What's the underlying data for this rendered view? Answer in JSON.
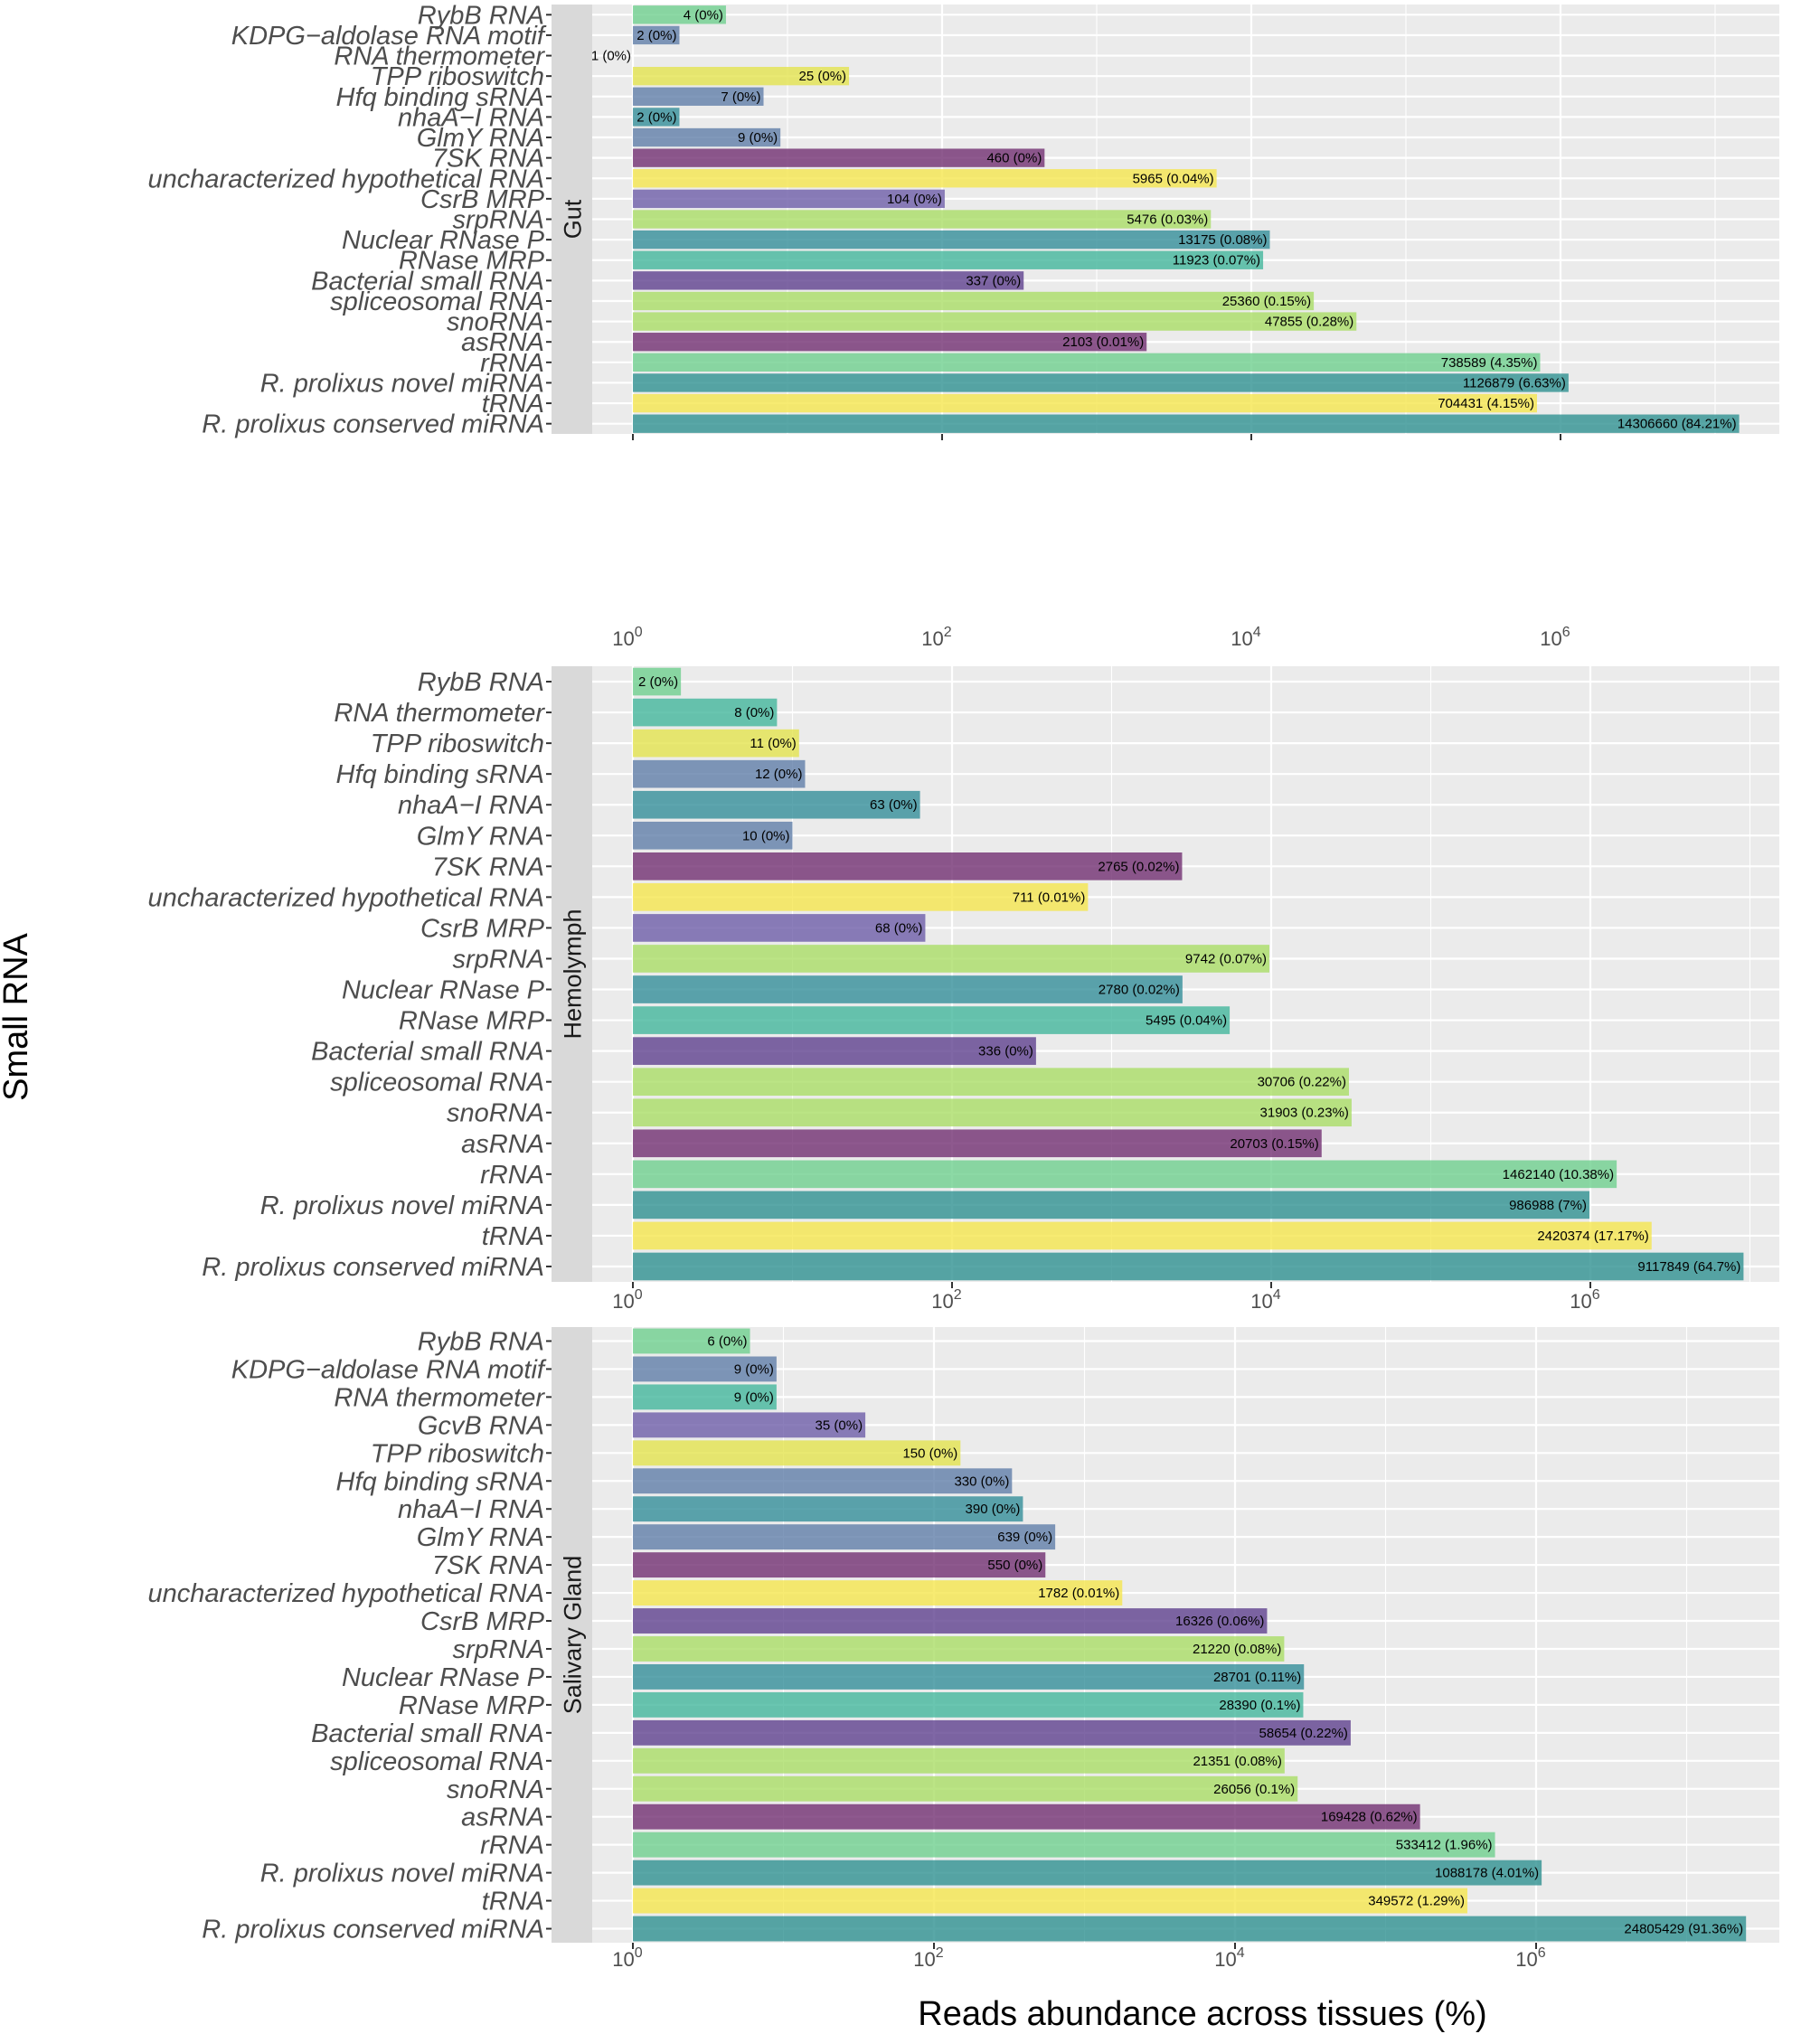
{
  "colors": {
    "panel_bg": "#EBEBEB",
    "strip_bg": "#D9D9D9",
    "grid": "#FFFFFF",
    "palette": {
      "green": "#6CCE8C",
      "steel": "#5C7BA6",
      "yellow": "#E3E34A",
      "purple": "#6E2A6E",
      "bright_yellow": "#F5E64A",
      "violet": "#6A5AA6",
      "lime": "#A8DC63",
      "teal": "#2F8C97",
      "sea": "#3FB59A",
      "indigo": "#5B3C8C",
      "teal2": "#2A8E8E"
    }
  },
  "chart_data": {
    "type": "bar",
    "orientation": "horizontal",
    "x_scale": "log10",
    "xlim": [
      0.75,
      30000000
    ],
    "x_tick_labels": [
      {
        "value": 1,
        "base": "10",
        "exp": "0"
      },
      {
        "value": 100,
        "base": "10",
        "exp": "2"
      },
      {
        "value": 10000,
        "base": "10",
        "exp": "4"
      },
      {
        "value": 1000000,
        "base": "10",
        "exp": "6"
      }
    ],
    "xlabel": "Reads abundance across tissues (%)",
    "ylabel": "Small RNA",
    "grid": true,
    "panels": [
      {
        "facet": "Gut",
        "x_max": 23000000,
        "bars": [
          {
            "category": "RybB RNA",
            "value": 4,
            "label": "4 (0%)",
            "color": "green"
          },
          {
            "category": "KDPG−aldolase RNA motif",
            "value": 2,
            "label": "2 (0%)",
            "color": "steel"
          },
          {
            "category": "RNA thermometer",
            "value": 1,
            "label": "1 (0%)",
            "color": "sea"
          },
          {
            "category": "TPP riboswitch",
            "value": 25,
            "label": "25 (0%)",
            "color": "yellow"
          },
          {
            "category": "Hfq binding sRNA",
            "value": 7,
            "label": "7 (0%)",
            "color": "steel"
          },
          {
            "category": "nhaA−I RNA",
            "value": 2,
            "label": "2 (0%)",
            "color": "teal"
          },
          {
            "category": "GlmY RNA",
            "value": 9,
            "label": "9 (0%)",
            "color": "steel"
          },
          {
            "category": "7SK RNA",
            "value": 460,
            "label": "460 (0%)",
            "color": "purple"
          },
          {
            "category": "uncharacterized hypothetical RNA",
            "value": 5965,
            "label": "5965 (0.04%)",
            "color": "bright_yellow"
          },
          {
            "category": "CsrB MRP",
            "value": 104,
            "label": "104 (0%)",
            "color": "violet"
          },
          {
            "category": "srpRNA",
            "value": 5476,
            "label": "5476 (0.03%)",
            "color": "lime"
          },
          {
            "category": "Nuclear RNase P",
            "value": 13175,
            "label": "13175 (0.08%)",
            "color": "teal"
          },
          {
            "category": "RNase MRP",
            "value": 11923,
            "label": "11923 (0.07%)",
            "color": "sea"
          },
          {
            "category": "Bacterial small RNA",
            "value": 337,
            "label": "337 (0%)",
            "color": "indigo"
          },
          {
            "category": "spliceosomal RNA",
            "value": 25360,
            "label": "25360 (0.15%)",
            "color": "lime"
          },
          {
            "category": "snoRNA",
            "value": 47855,
            "label": "47855 (0.28%)",
            "color": "lime"
          },
          {
            "category": "asRNA",
            "value": 2103,
            "label": "2103 (0.01%)",
            "color": "purple"
          },
          {
            "category": "rRNA",
            "value": 738589,
            "label": "738589 (4.35%)",
            "color": "green"
          },
          {
            "category": "R. prolixus novel miRNA",
            "value": 1126879,
            "label": "1126879 (6.63%)",
            "color": "teal2"
          },
          {
            "category": "tRNA",
            "value": 704431,
            "label": "704431 (4.15%)",
            "color": "bright_yellow"
          },
          {
            "category": "R. prolixus conserved miRNA",
            "value": 14306660,
            "label": "14306660 (84.21%)",
            "color": "teal2"
          }
        ]
      },
      {
        "facet": "Hemolymph",
        "x_max": 23000000,
        "bars": [
          {
            "category": "RybB RNA",
            "value": 2,
            "label": "2 (0%)",
            "color": "green"
          },
          {
            "category": "RNA thermometer",
            "value": 8,
            "label": "8 (0%)",
            "color": "sea"
          },
          {
            "category": "TPP riboswitch",
            "value": 11,
            "label": "11 (0%)",
            "color": "yellow"
          },
          {
            "category": "Hfq binding sRNA",
            "value": 12,
            "label": "12 (0%)",
            "color": "steel"
          },
          {
            "category": "nhaA−I RNA",
            "value": 63,
            "label": "63 (0%)",
            "color": "teal"
          },
          {
            "category": "GlmY RNA",
            "value": 10,
            "label": "10 (0%)",
            "color": "steel"
          },
          {
            "category": "7SK RNA",
            "value": 2765,
            "label": "2765 (0.02%)",
            "color": "purple"
          },
          {
            "category": "uncharacterized hypothetical RNA",
            "value": 711,
            "label": "711 (0.01%)",
            "color": "bright_yellow"
          },
          {
            "category": "CsrB MRP",
            "value": 68,
            "label": "68 (0%)",
            "color": "violet"
          },
          {
            "category": "srpRNA",
            "value": 9742,
            "label": "9742 (0.07%)",
            "color": "lime"
          },
          {
            "category": "Nuclear RNase P",
            "value": 2780,
            "label": "2780 (0.02%)",
            "color": "teal"
          },
          {
            "category": "RNase MRP",
            "value": 5495,
            "label": "5495 (0.04%)",
            "color": "sea"
          },
          {
            "category": "Bacterial small RNA",
            "value": 336,
            "label": "336 (0%)",
            "color": "indigo"
          },
          {
            "category": "spliceosomal RNA",
            "value": 30706,
            "label": "30706 (0.22%)",
            "color": "lime"
          },
          {
            "category": "snoRNA",
            "value": 31903,
            "label": "31903 (0.23%)",
            "color": "lime"
          },
          {
            "category": "asRNA",
            "value": 20703,
            "label": "20703 (0.15%)",
            "color": "purple"
          },
          {
            "category": "rRNA",
            "value": 1462140,
            "label": "1462140 (10.38%)",
            "color": "green"
          },
          {
            "category": "R. prolixus novel miRNA",
            "value": 986988,
            "label": "986988 (7%)",
            "color": "teal2"
          },
          {
            "category": "tRNA",
            "value": 2420374,
            "label": "2420374 (17.17%)",
            "color": "bright_yellow"
          },
          {
            "category": "R. prolixus conserved miRNA",
            "value": 9117849,
            "label": "9117849 (64.7%)",
            "color": "teal2"
          }
        ]
      },
      {
        "facet": "Salivary Gland",
        "x_max": 40000000,
        "bars": [
          {
            "category": "RybB RNA",
            "value": 6,
            "label": "6 (0%)",
            "color": "green"
          },
          {
            "category": "KDPG−aldolase RNA motif",
            "value": 9,
            "label": "9 (0%)",
            "color": "steel"
          },
          {
            "category": "RNA thermometer",
            "value": 9,
            "label": "9 (0%)",
            "color": "sea"
          },
          {
            "category": "GcvB RNA",
            "value": 35,
            "label": "35 (0%)",
            "color": "violet"
          },
          {
            "category": "TPP riboswitch",
            "value": 150,
            "label": "150 (0%)",
            "color": "yellow"
          },
          {
            "category": "Hfq binding sRNA",
            "value": 330,
            "label": "330 (0%)",
            "color": "steel"
          },
          {
            "category": "nhaA−I RNA",
            "value": 390,
            "label": "390 (0%)",
            "color": "teal"
          },
          {
            "category": "GlmY RNA",
            "value": 639,
            "label": "639 (0%)",
            "color": "steel"
          },
          {
            "category": "7SK RNA",
            "value": 550,
            "label": "550 (0%)",
            "color": "purple"
          },
          {
            "category": "uncharacterized hypothetical RNA",
            "value": 1782,
            "label": "1782 (0.01%)",
            "color": "bright_yellow"
          },
          {
            "category": "CsrB MRP",
            "value": 16326,
            "label": "16326 (0.06%)",
            "color": "indigo"
          },
          {
            "category": "srpRNA",
            "value": 21220,
            "label": "21220 (0.08%)",
            "color": "lime"
          },
          {
            "category": "Nuclear RNase P",
            "value": 28701,
            "label": "28701 (0.11%)",
            "color": "teal"
          },
          {
            "category": "RNase MRP",
            "value": 28390,
            "label": "28390 (0.1%)",
            "color": "sea"
          },
          {
            "category": "Bacterial small RNA",
            "value": 58654,
            "label": "58654 (0.22%)",
            "color": "indigo"
          },
          {
            "category": "spliceosomal RNA",
            "value": 21351,
            "label": "21351 (0.08%)",
            "color": "lime"
          },
          {
            "category": "snoRNA",
            "value": 26056,
            "label": "26056 (0.1%)",
            "color": "lime"
          },
          {
            "category": "asRNA",
            "value": 169428,
            "label": "169428 (0.62%)",
            "color": "purple"
          },
          {
            "category": "rRNA",
            "value": 533412,
            "label": "533412 (1.96%)",
            "color": "green"
          },
          {
            "category": "R. prolixus novel miRNA",
            "value": 1088178,
            "label": "1088178 (4.01%)",
            "color": "teal2"
          },
          {
            "category": "tRNA",
            "value": 349572,
            "label": "349572 (1.29%)",
            "color": "bright_yellow"
          },
          {
            "category": "R. prolixus conserved miRNA",
            "value": 24805429,
            "label": "24805429 (91.36%)",
            "color": "teal2"
          }
        ]
      }
    ]
  }
}
